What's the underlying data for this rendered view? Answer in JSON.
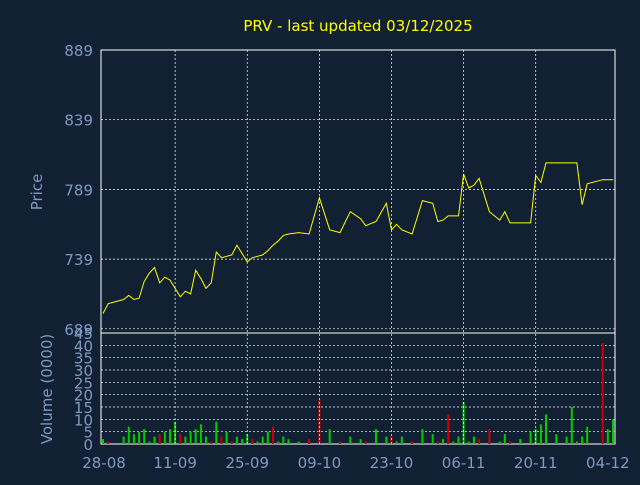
{
  "title": "PRV - last updated 03/12/2025",
  "colors": {
    "background": "#112033",
    "title": "#ffff00",
    "axis_text": "#7f99c2",
    "frame": "#ffffff",
    "grid": "#ffffff",
    "price_line": "#ffff00",
    "volume_up": "#00cc00",
    "volume_down": "#cc0000"
  },
  "chart_data": [
    {
      "type": "line",
      "ylabel": "Price",
      "ylim": [
        686,
        889
      ],
      "yticks": [
        689,
        739,
        789,
        839,
        889
      ],
      "xticks": [
        "28-08",
        "11-09",
        "25-09",
        "09-10",
        "23-10",
        "06-11",
        "20-11",
        "04-12"
      ],
      "grid": true,
      "series": [
        {
          "x": [
            "2025-08-28",
            "2025-08-29",
            "2025-09-01",
            "2025-09-02",
            "2025-09-03",
            "2025-09-04",
            "2025-09-05",
            "2025-09-06",
            "2025-09-07",
            "2025-09-08",
            "2025-09-09",
            "2025-09-10",
            "2025-09-11",
            "2025-09-12",
            "2025-09-13",
            "2025-09-14",
            "2025-09-15",
            "2025-09-16",
            "2025-09-17",
            "2025-09-18",
            "2025-09-19",
            "2025-09-20",
            "2025-09-21",
            "2025-09-22",
            "2025-09-23",
            "2025-09-24",
            "2025-09-25",
            "2025-09-26",
            "2025-09-27",
            "2025-09-28",
            "2025-09-29",
            "2025-09-30",
            "2025-10-01",
            "2025-10-02",
            "2025-10-03",
            "2025-10-05",
            "2025-10-07",
            "2025-10-09",
            "2025-10-11",
            "2025-10-13",
            "2025-10-15",
            "2025-10-17",
            "2025-10-18",
            "2025-10-20",
            "2025-10-22",
            "2025-10-23",
            "2025-10-24",
            "2025-10-25",
            "2025-10-27",
            "2025-10-29",
            "2025-10-31",
            "2025-11-01",
            "2025-11-02",
            "2025-11-03",
            "2025-11-04",
            "2025-11-05",
            "2025-11-06",
            "2025-11-07",
            "2025-11-08",
            "2025-11-09",
            "2025-11-11",
            "2025-11-13",
            "2025-11-14",
            "2025-11-15",
            "2025-11-17",
            "2025-11-19",
            "2025-11-20",
            "2025-11-21",
            "2025-11-22",
            "2025-11-24",
            "2025-11-26",
            "2025-11-27",
            "2025-11-28",
            "2025-11-29",
            "2025-11-30",
            "2025-12-03",
            "2025-12-04",
            "2025-12-05"
          ],
          "values": [
            700,
            707,
            710,
            713,
            710,
            711,
            723,
            729,
            733,
            722,
            726,
            724,
            718,
            712,
            716,
            714,
            731,
            725,
            718,
            722,
            744,
            740,
            741,
            742,
            749,
            743,
            737,
            740,
            741,
            742,
            745,
            749,
            752,
            756,
            757,
            758,
            757,
            783,
            760,
            758,
            773,
            768,
            763,
            766,
            779,
            760,
            764,
            760,
            757,
            781,
            779,
            766,
            767,
            770,
            770,
            770,
            800,
            790,
            792,
            797,
            773,
            767,
            773,
            765,
            765,
            765,
            799,
            794,
            808,
            808,
            808,
            808,
            808,
            778,
            793,
            796,
            796,
            796
          ]
        }
      ]
    },
    {
      "type": "bar",
      "ylabel": "Volume (0000)",
      "ylim": [
        0,
        45
      ],
      "yticks": [
        0,
        5,
        10,
        15,
        20,
        25,
        30,
        35,
        40,
        45
      ],
      "grid": true,
      "series": [
        {
          "x": [
            "2025-08-28",
            "2025-08-29",
            "2025-09-01",
            "2025-09-02",
            "2025-09-03",
            "2025-09-04",
            "2025-09-05",
            "2025-09-06",
            "2025-09-07",
            "2025-09-08",
            "2025-09-09",
            "2025-09-10",
            "2025-09-11",
            "2025-09-12",
            "2025-09-13",
            "2025-09-14",
            "2025-09-15",
            "2025-09-16",
            "2025-09-17",
            "2025-09-18",
            "2025-09-19",
            "2025-09-20",
            "2025-09-21",
            "2025-09-22",
            "2025-09-23",
            "2025-09-24",
            "2025-09-25",
            "2025-09-26",
            "2025-09-27",
            "2025-09-28",
            "2025-09-29",
            "2025-09-30",
            "2025-10-01",
            "2025-10-02",
            "2025-10-03",
            "2025-10-05",
            "2025-10-07",
            "2025-10-09",
            "2025-10-11",
            "2025-10-13",
            "2025-10-15",
            "2025-10-17",
            "2025-10-18",
            "2025-10-20",
            "2025-10-22",
            "2025-10-23",
            "2025-10-24",
            "2025-10-25",
            "2025-10-27",
            "2025-10-29",
            "2025-10-31",
            "2025-11-01",
            "2025-11-02",
            "2025-11-03",
            "2025-11-04",
            "2025-11-05",
            "2025-11-06",
            "2025-11-07",
            "2025-11-08",
            "2025-11-09",
            "2025-11-11",
            "2025-11-13",
            "2025-11-14",
            "2025-11-15",
            "2025-11-17",
            "2025-11-19",
            "2025-11-20",
            "2025-11-21",
            "2025-11-22",
            "2025-11-24",
            "2025-11-26",
            "2025-11-27",
            "2025-11-28",
            "2025-11-29",
            "2025-11-30",
            "2025-12-03",
            "2025-12-04",
            "2025-12-05"
          ],
          "values": [
            2,
            1,
            3,
            7,
            4,
            5,
            6,
            1,
            3,
            4,
            5,
            6,
            9,
            4,
            3,
            5,
            6,
            8,
            3,
            1,
            9,
            3,
            5,
            1,
            3,
            2,
            4,
            2,
            1,
            3,
            5,
            7,
            1,
            3,
            2,
            1,
            2,
            18,
            6,
            1,
            3,
            2,
            1,
            6,
            3,
            3,
            1,
            3,
            1,
            6,
            4,
            1,
            2,
            12,
            1,
            3,
            17,
            1,
            3,
            2,
            6,
            1,
            4,
            1,
            2,
            5,
            6,
            8,
            12,
            4,
            3,
            15,
            1,
            3,
            7,
            41,
            6,
            10
          ],
          "directions": [
            "up",
            "down",
            "up",
            "up",
            "up",
            "up",
            "up",
            "up",
            "up",
            "down",
            "up",
            "up",
            "up",
            "down",
            "up",
            "up",
            "up",
            "up",
            "up",
            "down",
            "up",
            "down",
            "up",
            "down",
            "up",
            "up",
            "up",
            "down",
            "up",
            "up",
            "up",
            "down",
            "up",
            "up",
            "up",
            "up",
            "down",
            "down",
            "up",
            "down",
            "up",
            "up",
            "down",
            "up",
            "up",
            "down",
            "up",
            "up",
            "down",
            "up",
            "up",
            "down",
            "up",
            "down",
            "up",
            "up",
            "up",
            "up",
            "up",
            "down",
            "down",
            "up",
            "up",
            "down",
            "up",
            "up",
            "up",
            "up",
            "up",
            "up",
            "up",
            "up",
            "up",
            "up",
            "up",
            "down",
            "up",
            "up"
          ]
        }
      ]
    }
  ]
}
